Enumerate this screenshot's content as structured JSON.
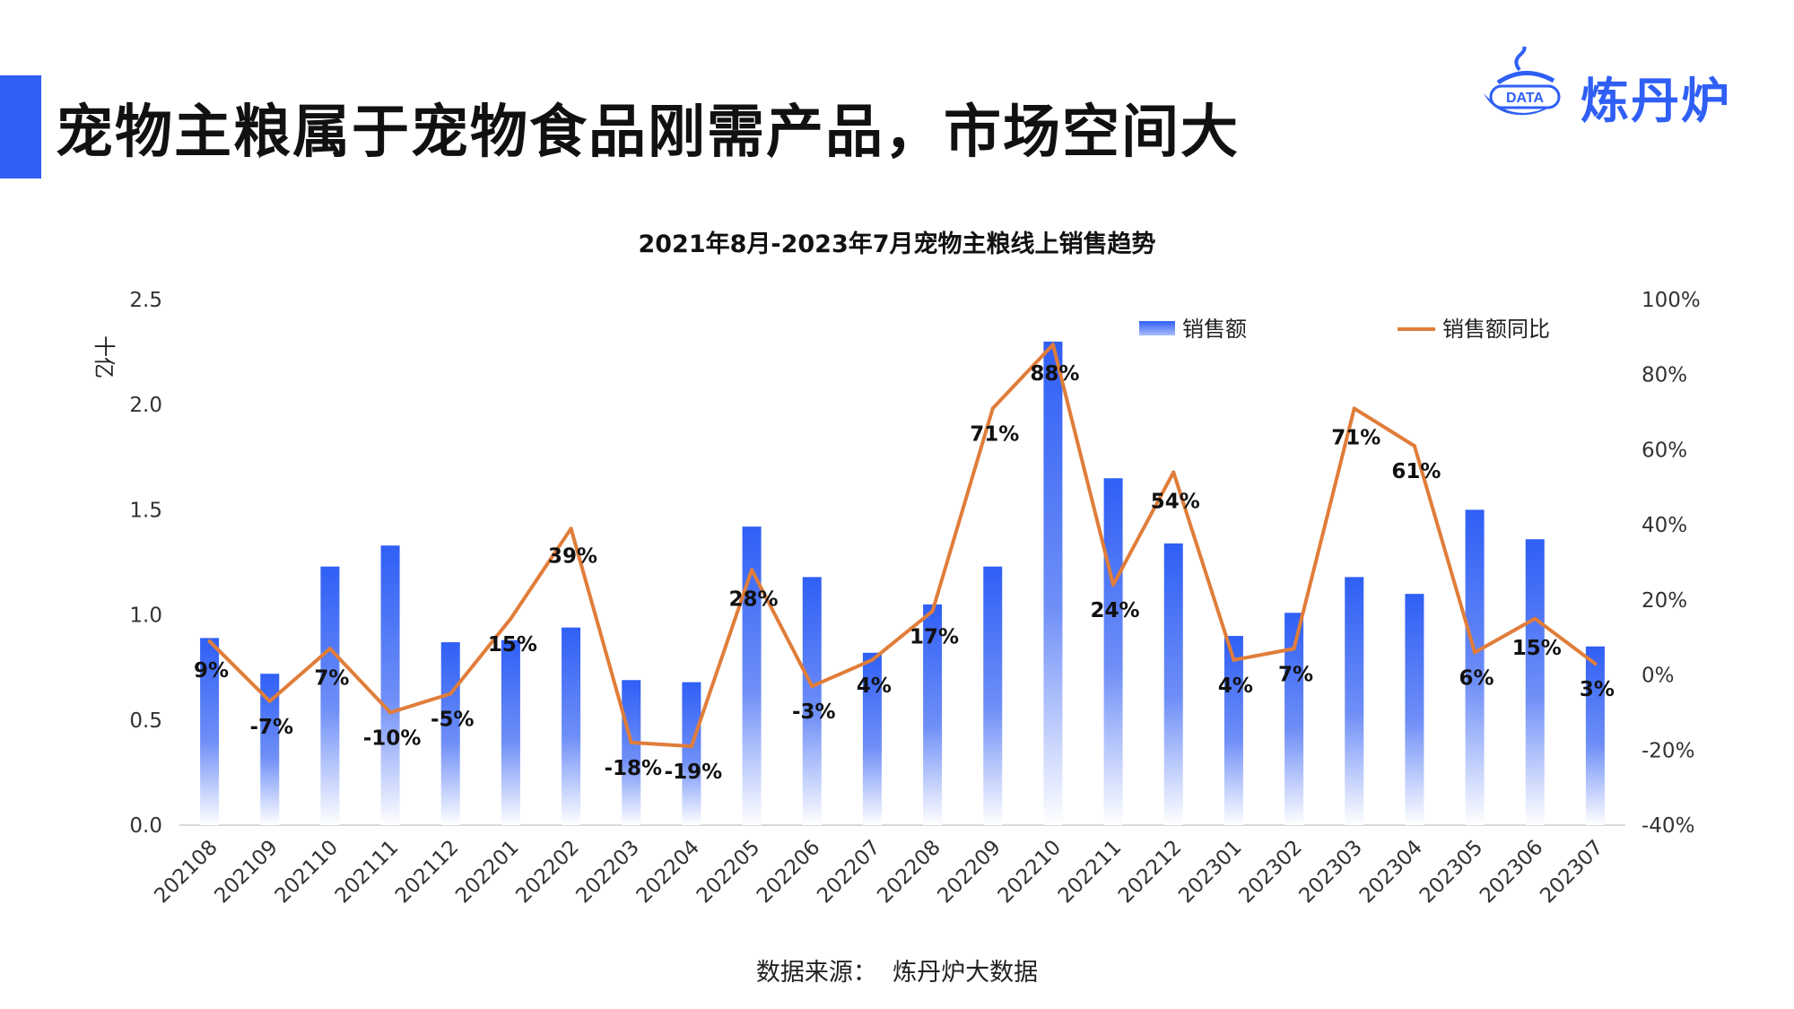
{
  "header": {
    "title": "宠物主粮属于宠物食品刚需产品，市场空间大",
    "logo_badge": "DATA",
    "logo_text": "炼丹炉"
  },
  "colors": {
    "accent": "#2f5ff5",
    "bar": "#2f5ff5",
    "line": "#e07d3a"
  },
  "footer": {
    "source": "数据来源：  炼丹炉大数据"
  },
  "chart_data": {
    "type": "bar",
    "title": "2021年8月-2023年7月宠物主粮线上销售趋势",
    "y_unit": "十亿",
    "categories": [
      "202108",
      "202109",
      "202110",
      "202111",
      "202112",
      "202201",
      "202202",
      "202203",
      "202204",
      "202205",
      "202206",
      "202207",
      "202208",
      "202209",
      "202210",
      "202211",
      "202212",
      "202301",
      "202302",
      "202303",
      "202304",
      "202305",
      "202306",
      "202307"
    ],
    "ylim": [
      0,
      2.5
    ],
    "yticks": [
      "0.0",
      "0.5",
      "1.0",
      "1.5",
      "2.0",
      "2.5"
    ],
    "y2lim": [
      -40,
      100
    ],
    "y2ticks": [
      "-40%",
      "-20%",
      "0%",
      "20%",
      "40%",
      "60%",
      "80%",
      "100%"
    ],
    "legend_position": "top-right",
    "series": [
      {
        "name": "销售额",
        "type": "bar",
        "axis": "left",
        "values": [
          0.89,
          0.72,
          1.23,
          1.33,
          0.87,
          0.88,
          0.94,
          0.69,
          0.68,
          1.42,
          1.18,
          0.82,
          1.05,
          1.23,
          2.3,
          1.65,
          1.34,
          0.9,
          1.01,
          1.18,
          1.1,
          1.5,
          1.36,
          0.85
        ]
      },
      {
        "name": "销售额同比",
        "type": "line",
        "axis": "right",
        "values": [
          9,
          -7,
          7,
          -10,
          -5,
          15,
          39,
          -18,
          -19,
          28,
          -3,
          4,
          17,
          71,
          88,
          24,
          54,
          4,
          7,
          71,
          61,
          6,
          15,
          3
        ],
        "labels": [
          "9%",
          "-7%",
          "7%",
          "-10%",
          "-5%",
          "15%",
          "39%",
          "-18%",
          "-19%",
          "28%",
          "-3%",
          "4%",
          "17%",
          "71%",
          "88%",
          "24%",
          "54%",
          "4%",
          "7%",
          "71%",
          "61%",
          "6%",
          "15%",
          "3%"
        ]
      }
    ]
  }
}
